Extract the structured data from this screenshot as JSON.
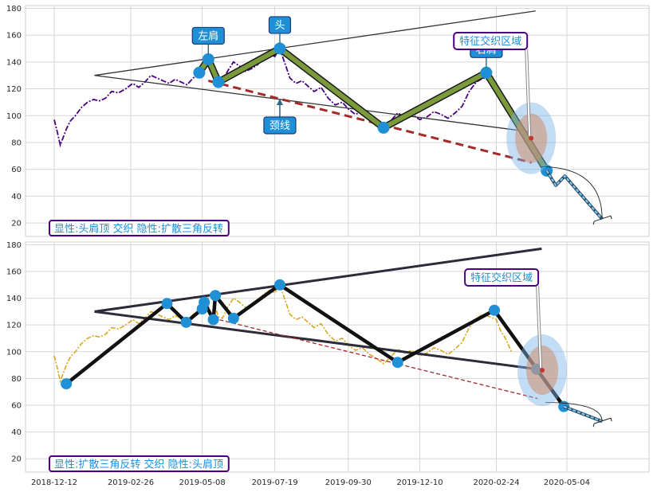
{
  "chart_data": [
    {
      "type": "line",
      "panel": "top",
      "ylim": [
        10,
        182
      ],
      "yticks": [
        20,
        40,
        60,
        80,
        100,
        120,
        140,
        160,
        180
      ],
      "grid": true,
      "colors": {
        "price": "#4b0082",
        "pattern_fill": "#7b9a3c",
        "pattern_edge": "#1a1a1a",
        "neckline": "#a52a2a",
        "marker": "#1f8fd6",
        "projection": "#87ceeb"
      },
      "price_series": [
        [
          "2018-12-12",
          97
        ],
        [
          "2018-12-15",
          88
        ],
        [
          "2018-12-18",
          78
        ],
        [
          "2018-12-21",
          84
        ],
        [
          "2018-12-24",
          90
        ],
        [
          "2018-12-28",
          96
        ],
        [
          "2019-01-02",
          100
        ],
        [
          "2019-01-08",
          106
        ],
        [
          "2019-01-14",
          110
        ],
        [
          "2019-01-20",
          112
        ],
        [
          "2019-01-26",
          111
        ],
        [
          "2019-02-01",
          113
        ],
        [
          "2019-02-07",
          118
        ],
        [
          "2019-02-14",
          117
        ],
        [
          "2019-02-21",
          120
        ],
        [
          "2019-02-28",
          124
        ],
        [
          "2019-03-06",
          121
        ],
        [
          "2019-03-12",
          125
        ],
        [
          "2019-03-18",
          130
        ],
        [
          "2019-03-24",
          128
        ],
        [
          "2019-03-30",
          126
        ],
        [
          "2019-04-05",
          124
        ],
        [
          "2019-04-11",
          127
        ],
        [
          "2019-04-17",
          125
        ],
        [
          "2019-04-23",
          123
        ],
        [
          "2019-04-29",
          128
        ],
        [
          "2019-05-05",
          131
        ],
        [
          "2019-05-08",
          132
        ],
        [
          "2019-05-12",
          138
        ],
        [
          "2019-05-16",
          143
        ],
        [
          "2019-05-20",
          136
        ],
        [
          "2019-05-24",
          126
        ],
        [
          "2019-05-28",
          125
        ],
        [
          "2019-06-02",
          133
        ],
        [
          "2019-06-08",
          140
        ],
        [
          "2019-06-14",
          137
        ],
        [
          "2019-06-20",
          133
        ],
        [
          "2019-06-26",
          135
        ],
        [
          "2019-07-02",
          138
        ],
        [
          "2019-07-08",
          143
        ],
        [
          "2019-07-14",
          146
        ],
        [
          "2019-07-19",
          144
        ],
        [
          "2019-07-24",
          150
        ],
        [
          "2019-07-29",
          139
        ],
        [
          "2019-08-03",
          128
        ],
        [
          "2019-08-09",
          124
        ],
        [
          "2019-08-15",
          126
        ],
        [
          "2019-08-21",
          122
        ],
        [
          "2019-08-27",
          118
        ],
        [
          "2019-09-03",
          121
        ],
        [
          "2019-09-10",
          113
        ],
        [
          "2019-09-17",
          108
        ],
        [
          "2019-09-24",
          110
        ],
        [
          "2019-09-30",
          105
        ],
        [
          "2019-10-07",
          101
        ],
        [
          "2019-10-14",
          103
        ],
        [
          "2019-10-21",
          98
        ],
        [
          "2019-10-28",
          95
        ],
        [
          "2019-11-04",
          91
        ],
        [
          "2019-11-11",
          96
        ],
        [
          "2019-11-18",
          102
        ],
        [
          "2019-11-25",
          99
        ],
        [
          "2019-12-02",
          101
        ],
        [
          "2019-12-10",
          97
        ],
        [
          "2019-12-17",
          99
        ],
        [
          "2019-12-24",
          103
        ],
        [
          "2019-12-31",
          101
        ],
        [
          "2020-01-07",
          98
        ],
        [
          "2020-01-14",
          102
        ],
        [
          "2020-01-21",
          107
        ],
        [
          "2020-01-28",
          118
        ],
        [
          "2020-02-04",
          125
        ],
        [
          "2020-02-11",
          128
        ],
        [
          "2020-02-18",
          126
        ],
        [
          "2020-02-24",
          124
        ],
        [
          "2020-02-28",
          116
        ],
        [
          "2020-03-04",
          110
        ],
        [
          "2020-03-10",
          100
        ]
      ],
      "pattern_points": [
        [
          "2019-05-05",
          132
        ],
        [
          "2019-05-14",
          142
        ],
        [
          "2019-05-24",
          125
        ],
        [
          "2019-07-24",
          150
        ],
        [
          "2019-11-04",
          91
        ],
        [
          "2020-02-14",
          132
        ],
        [
          "2020-04-14",
          59
        ]
      ],
      "neckline": [
        [
          "2019-05-14",
          126
        ],
        [
          "2020-03-30",
          65
        ]
      ],
      "triangle_upper": [
        [
          "2019-01-21",
          130
        ],
        [
          "2020-04-03",
          178
        ]
      ],
      "triangle_lower": [
        [
          "2019-01-21",
          130
        ],
        [
          "2020-03-28",
          88
        ]
      ],
      "projection": [
        [
          "2020-04-14",
          59
        ],
        [
          "2020-04-23",
          48
        ],
        [
          "2020-05-02",
          55
        ],
        [
          "2020-06-08",
          23
        ]
      ],
      "annotations": [
        {
          "text": "左肩",
          "target": [
            "2019-05-14",
            142
          ]
        },
        {
          "text": "头",
          "target": [
            "2019-07-24",
            150
          ]
        },
        {
          "text": "右肩",
          "target": [
            "2020-02-14",
            132
          ]
        },
        {
          "text": "颈线",
          "target": [
            "2019-07-24",
            115
          ]
        },
        {
          "text": "特征交织区域",
          "target": [
            "2020-03-28",
            82
          ]
        }
      ],
      "label": "显性:头肩顶 交织 隐性:扩散三角反转"
    },
    {
      "type": "line",
      "panel": "bottom",
      "ylim": [
        10,
        182
      ],
      "yticks": [
        20,
        40,
        60,
        80,
        100,
        120,
        140,
        160,
        180
      ],
      "xticks": [
        "2018-12-12",
        "2019-02-26",
        "2019-05-08",
        "2019-07-19",
        "2019-09-30",
        "2019-12-10",
        "2020-02-24",
        "2020-05-04"
      ],
      "grid": true,
      "colors": {
        "price": "#daa520",
        "pattern_line": "#111111",
        "triangle": "#2b2b3a",
        "neckline": "#a52a2a",
        "marker": "#1f8fd6",
        "projection": "#87ceeb"
      },
      "pattern_points": [
        [
          "2018-12-24",
          76
        ],
        [
          "2019-04-03",
          136
        ],
        [
          "2019-04-22",
          122
        ],
        [
          "2019-05-08",
          132
        ],
        [
          "2019-05-10",
          137
        ],
        [
          "2019-05-19",
          124
        ],
        [
          "2019-05-21",
          142
        ],
        [
          "2019-06-08",
          125
        ],
        [
          "2019-07-24",
          150
        ],
        [
          "2019-11-18",
          92
        ],
        [
          "2020-02-22",
          131
        ],
        [
          "2020-04-04",
          87
        ],
        [
          "2020-04-31",
          59
        ]
      ],
      "neckline": [
        [
          "2019-05-19",
          125
        ],
        [
          "2020-04-05",
          65
        ]
      ],
      "triangle_upper": [
        [
          "2019-01-21",
          130
        ],
        [
          "2020-04-09",
          177
        ]
      ],
      "triangle_lower": [
        [
          "2019-01-21",
          130
        ],
        [
          "2020-04-04",
          87
        ]
      ],
      "projection": [
        [
          "2020-04-31",
          59
        ],
        [
          "2020-06-08",
          48
        ]
      ],
      "annotations": [
        {
          "text": "特征交织区域",
          "target": [
            "2020-04-08",
            85
          ]
        }
      ],
      "label": "显性:扩散三角反转 交织 隐性:头肩顶"
    }
  ]
}
